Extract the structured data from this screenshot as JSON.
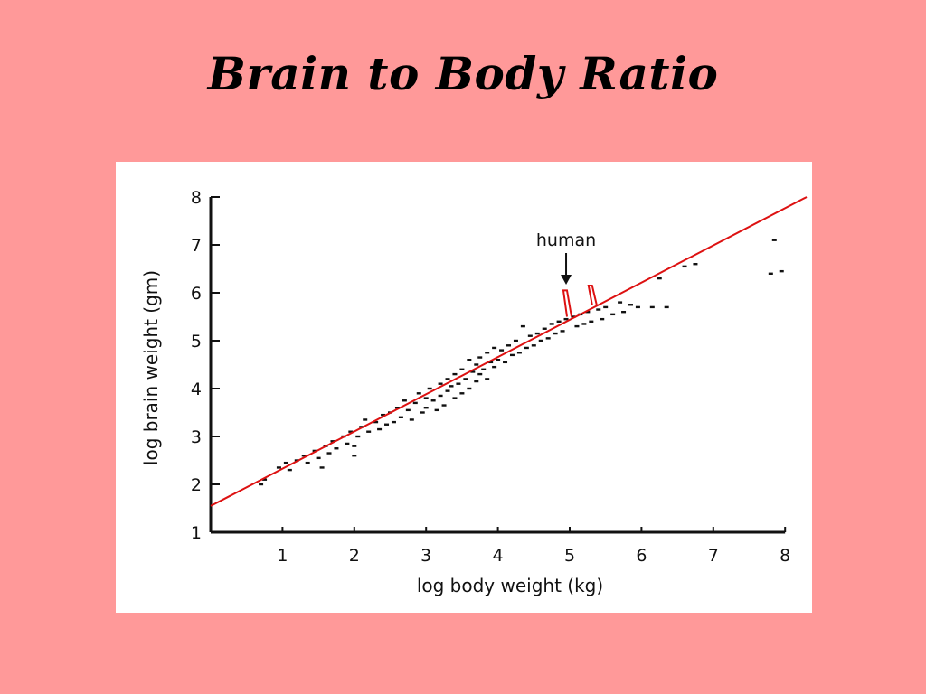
{
  "slide": {
    "title": "Brain to Body Ratio"
  },
  "chart_data": {
    "type": "scatter",
    "xlabel": "log body weight (kg)",
    "ylabel": "log brain weight (gm)",
    "xlim": [
      0,
      8
    ],
    "ylim": [
      1,
      8
    ],
    "x_ticks": [
      "1",
      "2",
      "3",
      "4",
      "5",
      "6",
      "7",
      "8"
    ],
    "y_ticks": [
      "1",
      "2",
      "3",
      "4",
      "5",
      "6",
      "7",
      "8"
    ],
    "grid": false,
    "colors": {
      "points": "#111111",
      "regression": "#dd1111",
      "background_slide": "#ff9999"
    },
    "regression_line": {
      "x": [
        0,
        8.3
      ],
      "y": [
        1.55,
        8.0
      ]
    },
    "annotations": [
      {
        "text": "human",
        "x": 4.95,
        "y": 6.0
      }
    ],
    "residual_markers": [
      {
        "x": 5.0,
        "y_from": 5.5,
        "y_to": 6.05
      },
      {
        "x": 5.35,
        "y_from": 5.75,
        "y_to": 6.15
      }
    ],
    "points": [
      [
        0.75,
        2.1
      ],
      [
        0.7,
        2.0
      ],
      [
        0.95,
        2.35
      ],
      [
        1.05,
        2.45
      ],
      [
        1.1,
        2.3
      ],
      [
        1.2,
        2.5
      ],
      [
        1.3,
        2.6
      ],
      [
        1.35,
        2.45
      ],
      [
        1.45,
        2.7
      ],
      [
        1.5,
        2.55
      ],
      [
        1.55,
        2.35
      ],
      [
        1.6,
        2.8
      ],
      [
        1.65,
        2.65
      ],
      [
        1.7,
        2.9
      ],
      [
        1.75,
        2.75
      ],
      [
        1.85,
        3.0
      ],
      [
        1.9,
        2.85
      ],
      [
        1.95,
        3.1
      ],
      [
        2.0,
        2.6
      ],
      [
        2.0,
        2.8
      ],
      [
        2.05,
        3.0
      ],
      [
        2.1,
        3.2
      ],
      [
        2.15,
        3.35
      ],
      [
        2.2,
        3.1
      ],
      [
        2.3,
        3.3
      ],
      [
        2.35,
        3.15
      ],
      [
        2.4,
        3.45
      ],
      [
        2.45,
        3.25
      ],
      [
        2.5,
        3.5
      ],
      [
        2.55,
        3.3
      ],
      [
        2.6,
        3.6
      ],
      [
        2.65,
        3.4
      ],
      [
        2.7,
        3.75
      ],
      [
        2.75,
        3.55
      ],
      [
        2.8,
        3.35
      ],
      [
        2.85,
        3.7
      ],
      [
        2.9,
        3.9
      ],
      [
        2.95,
        3.5
      ],
      [
        3.0,
        3.8
      ],
      [
        3.0,
        3.6
      ],
      [
        3.05,
        4.0
      ],
      [
        3.1,
        3.75
      ],
      [
        3.15,
        3.55
      ],
      [
        3.2,
        4.1
      ],
      [
        3.2,
        3.85
      ],
      [
        3.25,
        3.65
      ],
      [
        3.3,
        4.2
      ],
      [
        3.3,
        3.95
      ],
      [
        3.35,
        4.05
      ],
      [
        3.4,
        4.3
      ],
      [
        3.4,
        3.8
      ],
      [
        3.45,
        4.1
      ],
      [
        3.5,
        4.4
      ],
      [
        3.5,
        3.9
      ],
      [
        3.55,
        4.2
      ],
      [
        3.6,
        4.6
      ],
      [
        3.6,
        4.0
      ],
      [
        3.65,
        4.35
      ],
      [
        3.7,
        4.5
      ],
      [
        3.7,
        4.15
      ],
      [
        3.75,
        4.65
      ],
      [
        3.75,
        4.3
      ],
      [
        3.8,
        4.4
      ],
      [
        3.85,
        4.75
      ],
      [
        3.85,
        4.2
      ],
      [
        3.9,
        4.55
      ],
      [
        3.95,
        4.85
      ],
      [
        3.95,
        4.45
      ],
      [
        4.0,
        4.6
      ],
      [
        4.05,
        4.8
      ],
      [
        4.1,
        4.55
      ],
      [
        4.15,
        4.9
      ],
      [
        4.2,
        4.7
      ],
      [
        4.25,
        5.0
      ],
      [
        4.3,
        4.75
      ],
      [
        4.35,
        5.3
      ],
      [
        4.4,
        4.85
      ],
      [
        4.45,
        5.1
      ],
      [
        4.5,
        4.9
      ],
      [
        4.55,
        5.15
      ],
      [
        4.6,
        5.0
      ],
      [
        4.65,
        5.25
      ],
      [
        4.7,
        5.05
      ],
      [
        4.75,
        5.35
      ],
      [
        4.8,
        5.15
      ],
      [
        4.85,
        5.4
      ],
      [
        4.9,
        5.2
      ],
      [
        4.95,
        5.45
      ],
      [
        5.05,
        5.5
      ],
      [
        5.1,
        5.3
      ],
      [
        5.15,
        5.55
      ],
      [
        5.2,
        5.35
      ],
      [
        5.25,
        5.6
      ],
      [
        5.3,
        5.4
      ],
      [
        5.4,
        5.65
      ],
      [
        5.45,
        5.45
      ],
      [
        5.5,
        5.7
      ],
      [
        5.6,
        5.55
      ],
      [
        5.7,
        5.8
      ],
      [
        5.75,
        5.6
      ],
      [
        5.85,
        5.75
      ],
      [
        5.95,
        5.7
      ],
      [
        6.15,
        5.7
      ],
      [
        6.25,
        6.3
      ],
      [
        6.35,
        5.7
      ],
      [
        6.6,
        6.55
      ],
      [
        6.75,
        6.6
      ],
      [
        7.85,
        7.1
      ],
      [
        7.8,
        6.4
      ],
      [
        7.95,
        6.45
      ]
    ]
  }
}
